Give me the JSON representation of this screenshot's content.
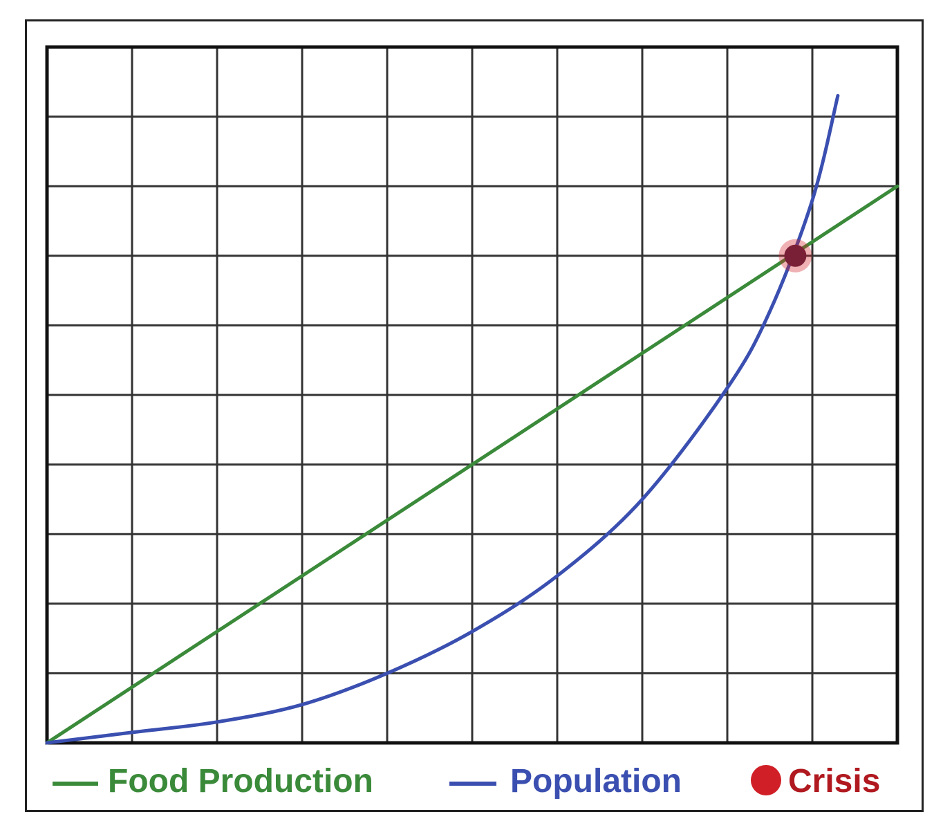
{
  "chart_data": {
    "type": "line",
    "title": "",
    "xlabel": "",
    "ylabel": "",
    "xlim": [
      0,
      10
    ],
    "ylim": [
      0,
      10
    ],
    "grid": true,
    "legend_position": "bottom",
    "series": [
      {
        "name": "Food Production",
        "color": "#3a8a3a",
        "x": [
          0,
          10
        ],
        "y": [
          0,
          8
        ]
      },
      {
        "name": "Population",
        "color": "#3a4fb0",
        "x": [
          0,
          1,
          2,
          3,
          4,
          5,
          6,
          7,
          8,
          8.5,
          9,
          9.3
        ],
        "y": [
          0,
          0.15,
          0.3,
          0.55,
          1.0,
          1.6,
          2.4,
          3.5,
          5.1,
          6.2,
          7.8,
          9.3
        ]
      }
    ],
    "points": [
      {
        "name": "Crisis",
        "color": "#d01f26",
        "x": 8.8,
        "y": 7.0
      }
    ]
  },
  "legend": {
    "food_label": "Food Production",
    "population_label": "Population",
    "crisis_label": "Crisis"
  }
}
